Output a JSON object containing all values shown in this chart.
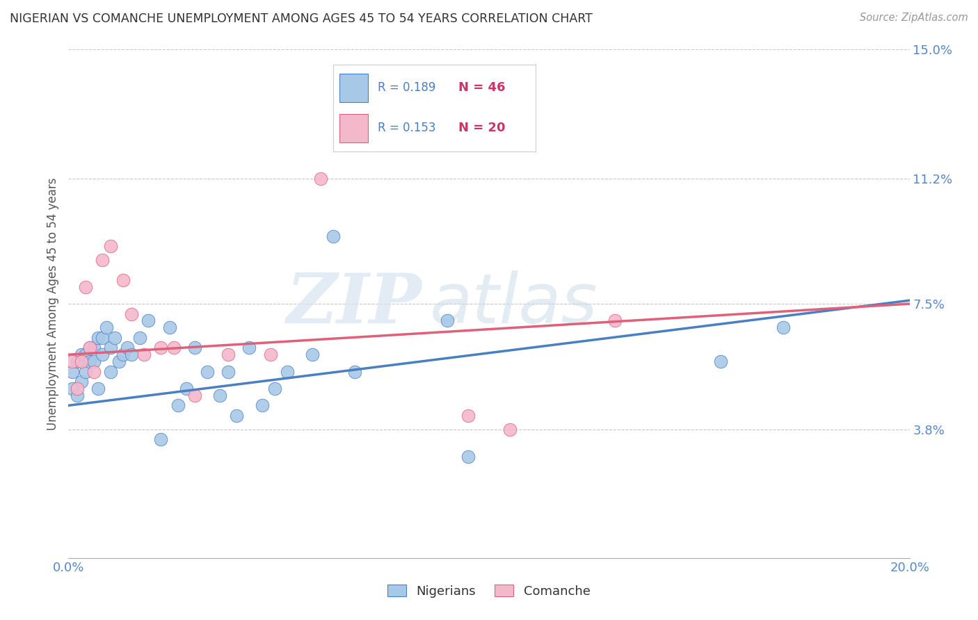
{
  "title": "NIGERIAN VS COMANCHE UNEMPLOYMENT AMONG AGES 45 TO 54 YEARS CORRELATION CHART",
  "source": "Source: ZipAtlas.com",
  "ylabel": "Unemployment Among Ages 45 to 54 years",
  "xlim": [
    0.0,
    0.2
  ],
  "ylim": [
    0.0,
    0.15
  ],
  "xticks": [
    0.0,
    0.02,
    0.04,
    0.06,
    0.08,
    0.1,
    0.12,
    0.14,
    0.16,
    0.18,
    0.2
  ],
  "ytick_labels_right": [
    "15.0%",
    "11.2%",
    "7.5%",
    "3.8%"
  ],
  "ytick_vals_right": [
    0.15,
    0.112,
    0.075,
    0.038
  ],
  "watermark_zip": "ZIP",
  "watermark_atlas": "atlas",
  "nigerian_color": "#a8c8e8",
  "comanche_color": "#f4b8cc",
  "nigerian_line_color": "#4a7fc1",
  "comanche_line_color": "#e0607a",
  "nigerian_R": "0.189",
  "nigerian_N": "46",
  "comanche_R": "0.153",
  "comanche_N": "20",
  "nigerian_x": [
    0.001,
    0.001,
    0.002,
    0.002,
    0.003,
    0.003,
    0.004,
    0.004,
    0.005,
    0.005,
    0.006,
    0.006,
    0.007,
    0.007,
    0.008,
    0.008,
    0.009,
    0.01,
    0.01,
    0.011,
    0.012,
    0.013,
    0.014,
    0.015,
    0.017,
    0.019,
    0.022,
    0.024,
    0.026,
    0.028,
    0.03,
    0.033,
    0.036,
    0.038,
    0.04,
    0.043,
    0.046,
    0.049,
    0.052,
    0.058,
    0.063,
    0.068,
    0.09,
    0.095,
    0.155,
    0.17
  ],
  "nigerian_y": [
    0.05,
    0.055,
    0.048,
    0.058,
    0.052,
    0.06,
    0.055,
    0.06,
    0.058,
    0.062,
    0.062,
    0.058,
    0.065,
    0.05,
    0.06,
    0.065,
    0.068,
    0.055,
    0.062,
    0.065,
    0.058,
    0.06,
    0.062,
    0.06,
    0.065,
    0.07,
    0.035,
    0.068,
    0.045,
    0.05,
    0.062,
    0.055,
    0.048,
    0.055,
    0.042,
    0.062,
    0.045,
    0.05,
    0.055,
    0.06,
    0.095,
    0.055,
    0.07,
    0.03,
    0.058,
    0.068
  ],
  "comanche_x": [
    0.001,
    0.002,
    0.003,
    0.004,
    0.005,
    0.006,
    0.008,
    0.01,
    0.013,
    0.015,
    0.018,
    0.022,
    0.025,
    0.03,
    0.038,
    0.048,
    0.06,
    0.095,
    0.105,
    0.13
  ],
  "comanche_y": [
    0.058,
    0.05,
    0.058,
    0.08,
    0.062,
    0.055,
    0.088,
    0.092,
    0.082,
    0.072,
    0.06,
    0.062,
    0.062,
    0.048,
    0.06,
    0.06,
    0.112,
    0.042,
    0.038,
    0.07
  ],
  "background_color": "#ffffff",
  "grid_color": "#c8c8c8",
  "title_color": "#333333",
  "axis_tick_color": "#5588cc",
  "legend_R_color": "#4a7fc1",
  "legend_N_color": "#cc3366",
  "legend_text_color": "#333333"
}
